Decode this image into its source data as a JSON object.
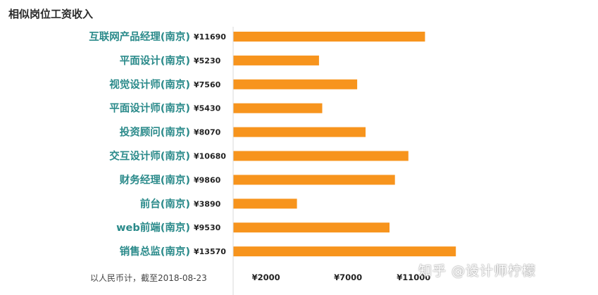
{
  "title": "相似岗位工资收入",
  "footnote": "以人民币计，截至2018-08-23",
  "watermark": "知乎 @设计师柠檬",
  "colors": {
    "bar": "#f7941d",
    "category_label": "#2a8a8a",
    "text": "#222222"
  },
  "chart_data": {
    "type": "bar",
    "orientation": "horizontal",
    "title": "相似岗位工资收入",
    "categories": [
      "互联网产品经理(南京)",
      "平面设计(南京)",
      "视觉设计师(南京)",
      "平面设计师(南京)",
      "投资顾问(南京)",
      "交互设计师(南京)",
      "财务经理(南京)",
      "前台(南京)",
      "web前端(南京)",
      "销售总监(南京)"
    ],
    "values": [
      11690,
      5230,
      7560,
      5430,
      8070,
      10680,
      9860,
      3890,
      9530,
      13570
    ],
    "value_labels": [
      "¥11690",
      "¥5230",
      "¥7560",
      "¥5430",
      "¥8070",
      "¥10680",
      "¥9860",
      "¥3890",
      "¥9530",
      "¥13570"
    ],
    "xticks": [
      2000,
      7000,
      11000
    ],
    "xtick_labels": [
      "¥2000",
      "¥7000",
      "¥11000"
    ],
    "xlim": [
      0,
      15000
    ],
    "grid": false,
    "legend": "none"
  }
}
